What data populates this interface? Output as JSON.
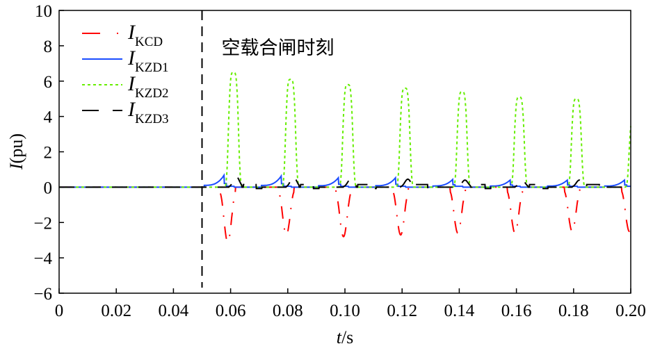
{
  "chart_data": {
    "type": "line",
    "xlabel": {
      "italic": "t",
      "rest": "/s"
    },
    "ylabel": {
      "italic": "I",
      "rest": "(pu)"
    },
    "xlim": [
      0,
      0.2
    ],
    "ylim": [
      -6,
      10
    ],
    "xticks": [
      "0",
      "0.02",
      "0.04",
      "0.06",
      "0.08",
      "0.10",
      "0.12",
      "0.14",
      "0.16",
      "0.18",
      "0.20"
    ],
    "xtick_values": [
      0,
      0.02,
      0.04,
      0.06,
      0.08,
      0.1,
      0.12,
      0.14,
      0.16,
      0.18,
      0.2
    ],
    "yticks": [
      "−6",
      "−4",
      "−2",
      "0",
      "2",
      "4",
      "6",
      "8",
      "10"
    ],
    "ytick_values": [
      -6,
      -4,
      -2,
      0,
      2,
      4,
      6,
      8,
      10
    ],
    "grid": false,
    "legend_position": "top-left",
    "annotation": {
      "text": "空载合闸时刻",
      "x": 0.05
    },
    "series": [
      {
        "name": "I",
        "sub": "KCD",
        "color": "#ff0000",
        "style": "dash-dot-sparse",
        "peak_times": [
          0.059,
          0.0795,
          0.0995,
          0.1195,
          0.1395,
          0.1595,
          0.1795,
          0.1995
        ],
        "peak_values": [
          -3.1,
          -2.7,
          -2.8,
          -2.7,
          -2.6,
          -2.6,
          -2.5,
          -2.5
        ]
      },
      {
        "name": "I",
        "sub": "KZD1",
        "color": "#1a4cff",
        "style": "solid",
        "peak_times": [
          0.0578,
          0.0778,
          0.0978,
          0.1178,
          0.1378,
          0.1578,
          0.1778,
          0.1978
        ],
        "peak_values": [
          0.7,
          0.65,
          0.55,
          0.55,
          0.45,
          0.4,
          0.4,
          0.4
        ]
      },
      {
        "name": "I",
        "sub": "KZD2",
        "color": "#66ee00",
        "style": "dotted",
        "peak_times": [
          0.061,
          0.081,
          0.101,
          0.121,
          0.141,
          0.161,
          0.181,
          0.2012
        ],
        "peak_values": [
          6.5,
          6.1,
          5.8,
          5.6,
          5.4,
          5.1,
          5.0,
          4.0
        ]
      },
      {
        "name": "I",
        "sub": "KZD3",
        "color": "#000000",
        "style": "dashed",
        "peak_times": [
          0.0625,
          0.0825,
          0.1025,
          0.1225,
          0.1425,
          0.1625,
          0.1825
        ],
        "peak_values": [
          0.6,
          0.6,
          0.45,
          0.45,
          0.4,
          0.4,
          0.4
        ]
      }
    ]
  }
}
